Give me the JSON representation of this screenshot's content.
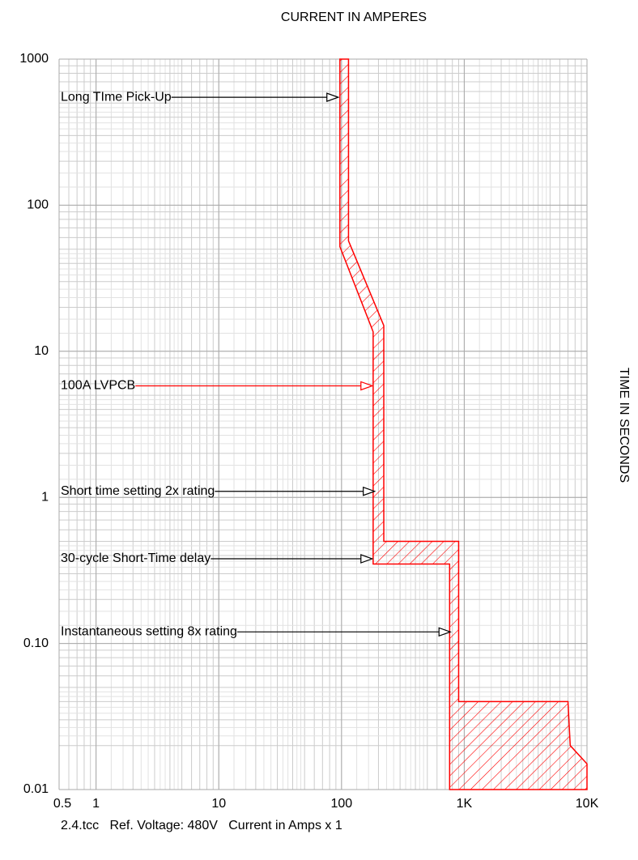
{
  "chart_data": {
    "type": "band",
    "title": "CURRENT IN AMPERES",
    "y_label": "TIME IN SECONDS",
    "footer": "2.4.tcc   Ref. Voltage: 480V   Current in Amps x 1",
    "xscale": "log",
    "yscale": "log",
    "grid": true,
    "minor_grid": true,
    "xlim": [
      0.5,
      10000
    ],
    "ylim": [
      0.01,
      1000
    ],
    "xticks": [
      0.5,
      1,
      10,
      100,
      {
        "value": 1000,
        "label": "1K"
      },
      {
        "value": 10000,
        "label": "10K"
      }
    ],
    "yticks": [
      0.01,
      {
        "value": 0.1,
        "label": "0.10"
      },
      1,
      10,
      100,
      1000
    ],
    "color": "#ff0000",
    "series": [
      {
        "x": [
          97,
          97,
          181,
          181,
          760,
          760
        ],
        "values": [
          1000,
          52,
          13.6,
          0.35,
          0.35,
          0.01
        ]
      },
      {
        "x": [
          114,
          114,
          221,
          221,
          900,
          900,
          7000,
          7300,
          10000,
          10000
        ],
        "values": [
          1000,
          57,
          15,
          0.5,
          0.5,
          0.04,
          0.04,
          0.02,
          0.015,
          0.01
        ]
      }
    ],
    "annotations": [
      {
        "text": "Long TIme Pick-Up",
        "x": 94,
        "y": 548,
        "color": "#000000"
      },
      {
        "text": "100A LVPCB",
        "x": 178,
        "y": 5.8,
        "color": "#ff0000"
      },
      {
        "text": "Short time setting 2x rating",
        "x": 186,
        "y": 1.1,
        "color": "#000000"
      },
      {
        "text": "30-cycle Short-Time delay",
        "x": 178,
        "y": 0.38,
        "color": "#000000"
      },
      {
        "text": "Instantaneous setting 8x rating",
        "x": 770,
        "y": 0.12,
        "color": "#000000"
      }
    ]
  }
}
